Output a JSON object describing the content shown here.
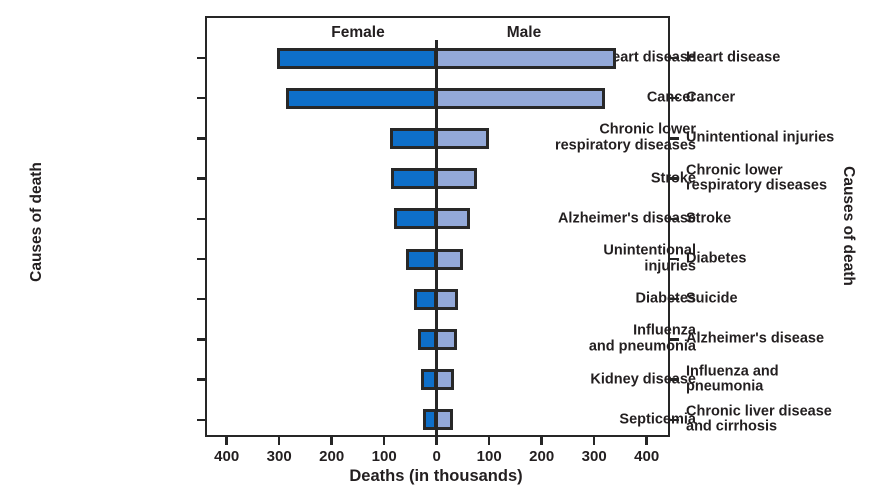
{
  "chart_data": {
    "type": "bar",
    "variant": "diverging-horizontal-pyramid",
    "title": "",
    "xlabel": "Deaths (in thousands)",
    "ylabel_left": "Causes of death",
    "ylabel_right": "Causes of death",
    "female_header": "Female",
    "male_header": "Male",
    "unit": "thousands of deaths",
    "x_tick_labels": [
      "400",
      "300",
      "200",
      "100",
      "0",
      "100",
      "200",
      "300",
      "400"
    ],
    "x_tick_values": [
      -400,
      -300,
      -200,
      -100,
      0,
      100,
      200,
      300,
      400
    ],
    "xlim_each_side": [
      0,
      450
    ],
    "grid": false,
    "rows": [
      {
        "female_label": "Heart disease",
        "female_value": 299,
        "male_label": "Heart disease",
        "male_value": 335
      },
      {
        "female_label": "Cancer",
        "female_value": 282,
        "male_label": "Cancer",
        "male_value": 314
      },
      {
        "female_label": "Chronic lower\nrespiratory diseases",
        "female_value": 84,
        "male_label": "Unintentional injuries",
        "male_value": 93
      },
      {
        "female_label": "Stroke",
        "female_value": 82,
        "male_label": "Chronic lower\nrespiratory diseases",
        "male_value": 72
      },
      {
        "female_label": "Alzheimer's disease",
        "female_value": 75,
        "male_label": "Stroke",
        "male_value": 57
      },
      {
        "female_label": "Unintentional\ninjuries",
        "female_value": 53,
        "male_label": "Diabetes",
        "male_value": 44
      },
      {
        "female_label": "Diabetes",
        "female_value": 37,
        "male_label": "Suicide",
        "male_value": 34
      },
      {
        "female_label": "Influenza\nand pneumonia",
        "female_value": 30,
        "male_label": "Alzheimer's disease",
        "male_value": 33
      },
      {
        "female_label": "Kidney disease",
        "female_value": 24,
        "male_label": "Influenza and\npneumonia",
        "male_value": 28
      },
      {
        "female_label": "Septicemia",
        "female_value": 21,
        "male_label": "Chronic liver disease\nand cirrhosis",
        "male_value": 25
      }
    ],
    "colors": {
      "female_bar": "#0e6fc9",
      "male_bar": "#93a9d9",
      "bar_outline": "#282828",
      "axis": "#262626",
      "text": "#231f20",
      "background": "#ffffff"
    }
  }
}
